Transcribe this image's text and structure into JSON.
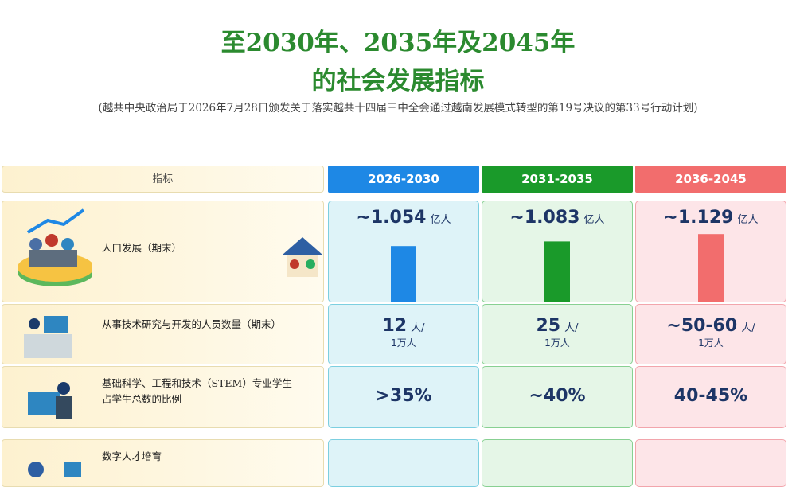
{
  "title_lines": [
    "至2030年、2035年及2045年",
    "的社会发展指标"
  ],
  "subtitle": "(越共中央政治局于2026年7月28日颁发关于落实越共十四届三中全会通过越南发展模式转型的第19号决议的第33号行动计划)",
  "table": {
    "header": [
      "指标",
      "2026-2030",
      "2031-2035",
      "2036-2045"
    ],
    "rows": [
      {
        "label": "人口发展（期末）",
        "values": [
          1.054,
          1.083,
          1.129
        ],
        "value_labels": [
          "~1.054",
          "~1.083",
          "~1.129"
        ],
        "unit": "亿人"
      },
      {
        "label": "从事技术研究与开发的人员数量（期末）",
        "values": [
          "12",
          "25",
          "~50-60"
        ],
        "unit": "人/",
        "per": "1万人"
      },
      {
        "label": "基础科学、工程和技术（STEM）专业学生占学生总数的比例",
        "values": [
          ">35%",
          "~40%",
          "40-45%"
        ]
      },
      {
        "label": "数字人才培育"
      }
    ]
  }
}
